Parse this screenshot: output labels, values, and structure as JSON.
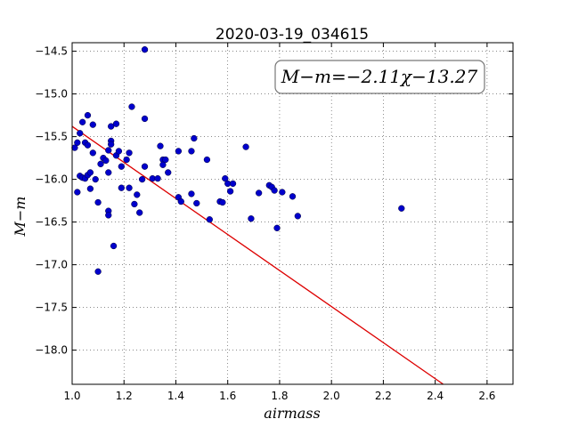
{
  "chart_data": {
    "type": "scatter",
    "title": "2020-03-19_034615",
    "xlabel": "airmass",
    "ylabel": "M−m",
    "xlim": [
      1.0,
      2.7
    ],
    "ylim": [
      -18.4,
      -14.4
    ],
    "y_inverted": true,
    "grid": true,
    "x_ticks": [
      "1.0",
      "1.2",
      "1.4",
      "1.6",
      "1.8",
      "2.0",
      "2.2",
      "2.4",
      "2.6"
    ],
    "y_ticks": [
      "−14.5",
      "−15.0",
      "−15.5",
      "−16.0",
      "−16.5",
      "−17.0",
      "−17.5",
      "−18.0"
    ],
    "annotation": "M−m=−2.11χ−13.27",
    "annotation_position": "top-right",
    "point_color": "#0000cc",
    "fit_color": "#dd0000",
    "fit": {
      "slope": -2.11,
      "intercept": -13.27,
      "x_range": [
        1.0,
        2.43
      ]
    },
    "points": [
      [
        1.01,
        -15.63
      ],
      [
        1.02,
        -16.15
      ],
      [
        1.02,
        -15.57
      ],
      [
        1.03,
        -15.46
      ],
      [
        1.03,
        -15.96
      ],
      [
        1.04,
        -15.33
      ],
      [
        1.04,
        -15.98
      ],
      [
        1.05,
        -15.57
      ],
      [
        1.05,
        -15.99
      ],
      [
        1.06,
        -15.25
      ],
      [
        1.06,
        -15.6
      ],
      [
        1.06,
        -15.95
      ],
      [
        1.07,
        -16.11
      ],
      [
        1.07,
        -15.92
      ],
      [
        1.08,
        -15.36
      ],
      [
        1.08,
        -15.69
      ],
      [
        1.09,
        -16.0
      ],
      [
        1.1,
        -16.27
      ],
      [
        1.1,
        -17.08
      ],
      [
        1.11,
        -15.82
      ],
      [
        1.12,
        -15.75
      ],
      [
        1.13,
        -15.78
      ],
      [
        1.14,
        -15.92
      ],
      [
        1.14,
        -15.66
      ],
      [
        1.14,
        -16.37
      ],
      [
        1.14,
        -16.42
      ],
      [
        1.15,
        -15.38
      ],
      [
        1.15,
        -15.55
      ],
      [
        1.15,
        -15.59
      ],
      [
        1.16,
        -16.78
      ],
      [
        1.17,
        -15.35
      ],
      [
        1.17,
        -15.72
      ],
      [
        1.18,
        -15.67
      ],
      [
        1.19,
        -15.85
      ],
      [
        1.19,
        -16.1
      ],
      [
        1.21,
        -15.77
      ],
      [
        1.22,
        -15.69
      ],
      [
        1.22,
        -16.1
      ],
      [
        1.23,
        -15.15
      ],
      [
        1.24,
        -16.29
      ],
      [
        1.25,
        -16.18
      ],
      [
        1.26,
        -16.39
      ],
      [
        1.27,
        -16.0
      ],
      [
        1.28,
        -14.48
      ],
      [
        1.28,
        -15.29
      ],
      [
        1.28,
        -15.85
      ],
      [
        1.31,
        -15.99
      ],
      [
        1.33,
        -15.99
      ],
      [
        1.34,
        -15.61
      ],
      [
        1.35,
        -15.77
      ],
      [
        1.35,
        -15.83
      ],
      [
        1.36,
        -15.77
      ],
      [
        1.37,
        -15.92
      ],
      [
        1.41,
        -15.67
      ],
      [
        1.41,
        -16.21
      ],
      [
        1.42,
        -16.26
      ],
      [
        1.46,
        -15.67
      ],
      [
        1.46,
        -16.17
      ],
      [
        1.47,
        -15.52
      ],
      [
        1.48,
        -16.28
      ],
      [
        1.52,
        -15.77
      ],
      [
        1.53,
        -16.47
      ],
      [
        1.57,
        -16.26
      ],
      [
        1.58,
        -16.27
      ],
      [
        1.59,
        -15.99
      ],
      [
        1.6,
        -16.05
      ],
      [
        1.61,
        -16.14
      ],
      [
        1.62,
        -16.05
      ],
      [
        1.67,
        -15.62
      ],
      [
        1.69,
        -16.46
      ],
      [
        1.72,
        -16.16
      ],
      [
        1.76,
        -16.07
      ],
      [
        1.77,
        -16.09
      ],
      [
        1.78,
        -16.13
      ],
      [
        1.79,
        -16.57
      ],
      [
        1.81,
        -16.15
      ],
      [
        1.85,
        -16.2
      ],
      [
        1.87,
        -16.43
      ],
      [
        2.27,
        -16.34
      ]
    ]
  }
}
